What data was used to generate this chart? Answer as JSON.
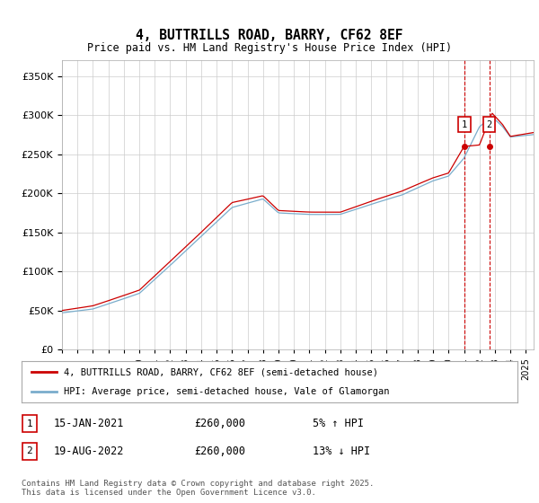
{
  "title": "4, BUTTRILLS ROAD, BARRY, CF62 8EF",
  "subtitle": "Price paid vs. HM Land Registry's House Price Index (HPI)",
  "ytick_values": [
    0,
    50000,
    100000,
    150000,
    200000,
    250000,
    300000,
    350000
  ],
  "ylim": [
    0,
    370000
  ],
  "xlim_start": 1995.0,
  "xlim_end": 2025.5,
  "red_color": "#cc0000",
  "blue_color": "#7aadcc",
  "marker1_x": 2021.04,
  "marker1_y": 260000,
  "marker2_x": 2022.63,
  "marker2_y": 260000,
  "legend_red": "4, BUTTRILLS ROAD, BARRY, CF62 8EF (semi-detached house)",
  "legend_blue": "HPI: Average price, semi-detached house, Vale of Glamorgan",
  "annotation1_label": "1",
  "annotation1_date": "15-JAN-2021",
  "annotation1_price": "£260,000",
  "annotation1_hpi": "5% ↑ HPI",
  "annotation2_label": "2",
  "annotation2_date": "19-AUG-2022",
  "annotation2_price": "£260,000",
  "annotation2_hpi": "13% ↓ HPI",
  "footer": "Contains HM Land Registry data © Crown copyright and database right 2025.\nThis data is licensed under the Open Government Licence v3.0.",
  "background_color": "#ffffff",
  "grid_color": "#cccccc"
}
